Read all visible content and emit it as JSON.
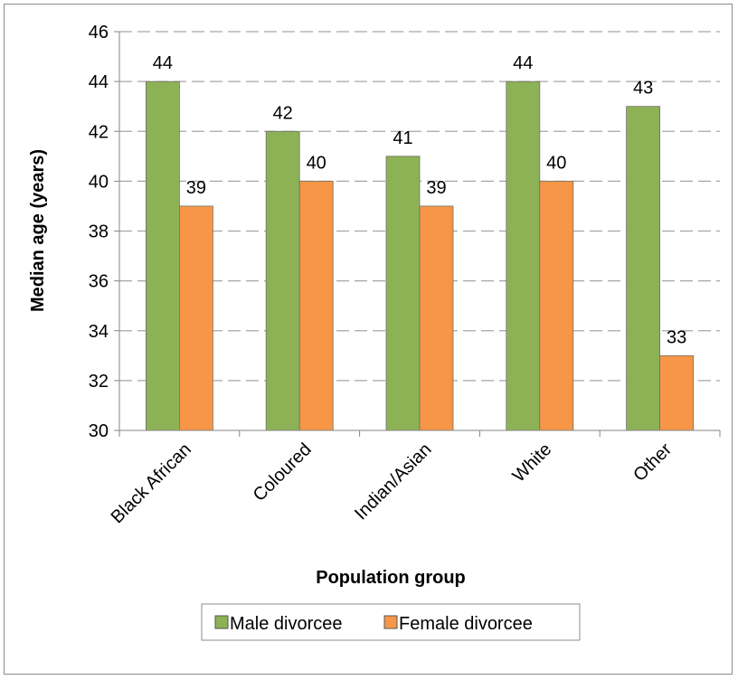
{
  "chart_data": {
    "type": "bar",
    "categories": [
      "Black African",
      "Coloured",
      "Indian/Asian",
      "White",
      "Other"
    ],
    "series": [
      {
        "name": "Male divorcee",
        "values": [
          44,
          42,
          41,
          44,
          43
        ],
        "color": "#8db255"
      },
      {
        "name": "Female divorcee",
        "values": [
          39,
          40,
          39,
          40,
          33
        ],
        "color": "#f79646"
      }
    ],
    "xlabel": "Population group",
    "ylabel": "Median age (years)",
    "ylim": [
      30,
      46
    ],
    "yticks": [
      30,
      32,
      34,
      36,
      38,
      40,
      42,
      44,
      46
    ],
    "grid": true,
    "legend": "bottom",
    "data_labels": true
  }
}
